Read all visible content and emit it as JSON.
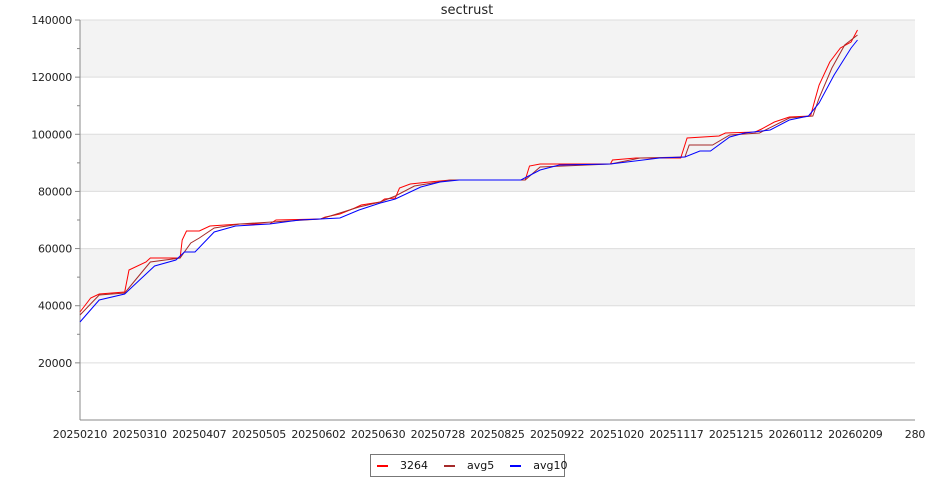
{
  "chart_data": {
    "type": "line",
    "title": "sectrust",
    "xlabel": "",
    "ylabel": "",
    "xlim": [
      "2025-02-10",
      "2026-03-09"
    ],
    "ylim": [
      0,
      140000
    ],
    "yticks": [
      20000,
      40000,
      60000,
      80000,
      100000,
      120000,
      140000
    ],
    "ytick_labels": [
      "20000",
      "40000",
      "60000",
      "80000",
      "100000",
      "120000",
      "140000"
    ],
    "xtick_labels": [
      "20250210",
      "20250310",
      "20250407",
      "20250505",
      "20250602",
      "20250630",
      "20250728",
      "20250825",
      "20250922",
      "20251020",
      "20251117",
      "20251215",
      "20260112",
      "20260209",
      "280"
    ],
    "grid": true,
    "band_color": "#f3f3f3",
    "legend_placement": "bottom-center",
    "series": [
      {
        "name": "3264",
        "color": "#ff0000",
        "points": [
          [
            "2025-02-10",
            37800
          ],
          [
            "2025-02-15",
            42700
          ],
          [
            "2025-02-19",
            44100
          ],
          [
            "2025-03-03",
            44800
          ],
          [
            "2025-03-05",
            52500
          ],
          [
            "2025-03-13",
            55300
          ],
          [
            "2025-03-15",
            56700
          ],
          [
            "2025-03-29",
            56700
          ],
          [
            "2025-03-30",
            63000
          ],
          [
            "2025-04-01",
            66150
          ],
          [
            "2025-04-07",
            66150
          ],
          [
            "2025-04-12",
            67900
          ],
          [
            "2025-04-26",
            68600
          ],
          [
            "2025-05-10",
            68600
          ],
          [
            "2025-05-13",
            70000
          ],
          [
            "2025-06-03",
            70350
          ],
          [
            "2025-06-05",
            71000
          ],
          [
            "2025-06-12",
            72100
          ],
          [
            "2025-06-19",
            74200
          ],
          [
            "2025-06-22",
            75250
          ],
          [
            "2025-07-01",
            76300
          ],
          [
            "2025-07-03",
            77350
          ],
          [
            "2025-07-08",
            77700
          ],
          [
            "2025-07-10",
            81200
          ],
          [
            "2025-07-15",
            82600
          ],
          [
            "2025-07-24",
            83300
          ],
          [
            "2025-08-03",
            84000
          ],
          [
            "2025-09-07",
            84000
          ],
          [
            "2025-09-09",
            88900
          ],
          [
            "2025-09-14",
            89600
          ],
          [
            "2025-10-17",
            89600
          ],
          [
            "2025-10-18",
            91000
          ],
          [
            "2025-10-29",
            91700
          ],
          [
            "2025-11-19",
            91700
          ],
          [
            "2025-11-22",
            98700
          ],
          [
            "2025-12-07",
            99400
          ],
          [
            "2025-12-10",
            100450
          ],
          [
            "2025-12-24",
            100800
          ],
          [
            "2025-12-27",
            101850
          ],
          [
            "2026-01-02",
            104300
          ],
          [
            "2026-01-09",
            106050
          ],
          [
            "2026-01-19",
            106400
          ],
          [
            "2026-01-21",
            112000
          ],
          [
            "2026-01-23",
            117250
          ],
          [
            "2026-01-28",
            125300
          ],
          [
            "2026-02-02",
            130200
          ],
          [
            "2026-02-07",
            132300
          ],
          [
            "2026-02-10",
            136500
          ]
        ]
      },
      {
        "name": "avg5",
        "color": "#a52a2a",
        "points": [
          [
            "2025-02-10",
            36750
          ],
          [
            "2025-02-19",
            43750
          ],
          [
            "2025-03-03",
            44450
          ],
          [
            "2025-03-08",
            49000
          ],
          [
            "2025-03-15",
            55300
          ],
          [
            "2025-03-29",
            56700
          ],
          [
            "2025-04-03",
            61950
          ],
          [
            "2025-04-07",
            63700
          ],
          [
            "2025-04-14",
            67200
          ],
          [
            "2025-04-26",
            68600
          ],
          [
            "2025-06-03",
            70350
          ],
          [
            "2025-06-21",
            74550
          ],
          [
            "2025-07-01",
            76300
          ],
          [
            "2025-07-08",
            78400
          ],
          [
            "2025-07-17",
            81900
          ],
          [
            "2025-08-03",
            84000
          ],
          [
            "2025-09-07",
            84000
          ],
          [
            "2025-09-14",
            88550
          ],
          [
            "2025-10-17",
            89600
          ],
          [
            "2025-10-31",
            91700
          ],
          [
            "2025-11-21",
            92050
          ],
          [
            "2025-11-23",
            96250
          ],
          [
            "2025-12-04",
            96250
          ],
          [
            "2025-12-12",
            99750
          ],
          [
            "2025-12-26",
            100450
          ],
          [
            "2026-01-09",
            105700
          ],
          [
            "2026-01-20",
            106400
          ],
          [
            "2026-01-23",
            112700
          ],
          [
            "2026-01-29",
            123200
          ],
          [
            "2026-02-04",
            131250
          ],
          [
            "2026-02-10",
            134750
          ]
        ]
      },
      {
        "name": "avg10",
        "color": "#0000ff",
        "points": [
          [
            "2025-02-10",
            34300
          ],
          [
            "2025-02-19",
            42000
          ],
          [
            "2025-03-03",
            44100
          ],
          [
            "2025-03-10",
            49000
          ],
          [
            "2025-03-17",
            53900
          ],
          [
            "2025-03-27",
            56000
          ],
          [
            "2025-03-31",
            58800
          ],
          [
            "2025-04-05",
            58800
          ],
          [
            "2025-04-14",
            65800
          ],
          [
            "2025-04-24",
            67900
          ],
          [
            "2025-05-10",
            68600
          ],
          [
            "2025-05-24",
            70000
          ],
          [
            "2025-06-12",
            70700
          ],
          [
            "2025-06-21",
            73500
          ],
          [
            "2025-07-01",
            75950
          ],
          [
            "2025-07-08",
            77350
          ],
          [
            "2025-07-20",
            81550
          ],
          [
            "2025-07-29",
            83300
          ],
          [
            "2025-08-07",
            84000
          ],
          [
            "2025-09-05",
            84000
          ],
          [
            "2025-09-14",
            87500
          ],
          [
            "2025-09-23",
            89250
          ],
          [
            "2025-10-17",
            89600
          ],
          [
            "2025-11-09",
            91700
          ],
          [
            "2025-11-21",
            92050
          ],
          [
            "2025-11-28",
            94150
          ],
          [
            "2025-12-03",
            94150
          ],
          [
            "2025-12-12",
            99050
          ],
          [
            "2025-12-19",
            100450
          ],
          [
            "2025-12-31",
            101500
          ],
          [
            "2026-01-09",
            105000
          ],
          [
            "2026-01-18",
            106400
          ],
          [
            "2026-01-23",
            110950
          ],
          [
            "2026-01-30",
            120750
          ],
          [
            "2026-02-07",
            130200
          ],
          [
            "2026-02-10",
            133000
          ]
        ]
      }
    ]
  }
}
